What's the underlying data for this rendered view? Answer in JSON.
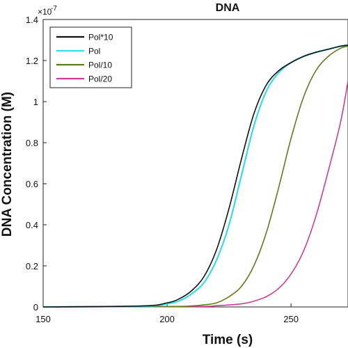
{
  "chart_data": {
    "type": "line",
    "title": "DNA",
    "xlabel": "Time (s)",
    "ylabel": "DNA Concentration (M)",
    "y_exponent_label": "×10",
    "y_exponent_power": "-7",
    "xlim": [
      150,
      273
    ],
    "ylim": [
      0,
      1.4
    ],
    "x_ticks": [
      150,
      200,
      250
    ],
    "x_tick_labels": [
      "150",
      "200",
      "250"
    ],
    "y_ticks": [
      0,
      0.2,
      0.4,
      0.6,
      0.8,
      1,
      1.2,
      1.4
    ],
    "y_tick_labels": [
      "0",
      "0.2",
      "0.4",
      "0.6",
      "0.8",
      "1",
      "1.2",
      "1.4"
    ],
    "grid": false,
    "legend_position": "top-left",
    "series": [
      {
        "name": "Pol*10",
        "color": "#111111",
        "x": [
          150,
          190,
          200,
          205,
          210,
          215,
          220,
          225,
          230,
          235,
          240,
          245,
          250,
          255,
          260,
          265,
          270,
          273
        ],
        "y": [
          0,
          0.005,
          0.02,
          0.04,
          0.08,
          0.15,
          0.28,
          0.48,
          0.72,
          0.94,
          1.08,
          1.15,
          1.19,
          1.22,
          1.24,
          1.255,
          1.27,
          1.275
        ]
      },
      {
        "name": "Pol",
        "color": "#33dde6",
        "x": [
          150,
          190,
          200,
          205,
          210,
          215,
          220,
          225,
          230,
          235,
          240,
          245,
          250,
          255,
          260,
          265,
          270,
          273
        ],
        "y": [
          0,
          0.004,
          0.015,
          0.03,
          0.065,
          0.12,
          0.23,
          0.4,
          0.64,
          0.88,
          1.05,
          1.14,
          1.19,
          1.22,
          1.24,
          1.255,
          1.27,
          1.275
        ]
      },
      {
        "name": "Pol/10",
        "color": "#5f7a1c",
        "x": [
          150,
          200,
          210,
          215,
          220,
          225,
          230,
          235,
          240,
          245,
          250,
          255,
          260,
          265,
          270,
          273
        ],
        "y": [
          0,
          0.002,
          0.005,
          0.01,
          0.02,
          0.05,
          0.1,
          0.2,
          0.36,
          0.58,
          0.82,
          1.02,
          1.15,
          1.22,
          1.26,
          1.27
        ]
      },
      {
        "name": "Pol/20",
        "color": "#cc3c8f",
        "x": [
          150,
          210,
          220,
          230,
          235,
          240,
          245,
          250,
          255,
          260,
          265,
          270,
          273
        ],
        "y": [
          0,
          0.002,
          0.006,
          0.015,
          0.028,
          0.05,
          0.09,
          0.16,
          0.27,
          0.44,
          0.66,
          0.9,
          1.1
        ]
      }
    ]
  }
}
